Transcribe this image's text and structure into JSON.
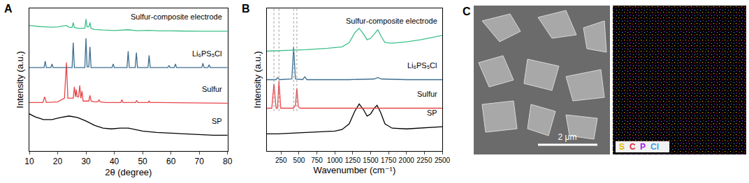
{
  "chart_data": [
    {
      "panel": "A",
      "type": "line",
      "xlabel": "2θ (degree)",
      "ylabel": "Intensity (a.u.)",
      "xlim": [
        10,
        80
      ],
      "xticks": [
        10,
        20,
        30,
        40,
        50,
        60,
        70,
        80
      ],
      "ylim": [
        0,
        1
      ],
      "yticks": [],
      "tick_labels": "x",
      "grid": false,
      "series": [
        {
          "name": "SP",
          "color": "#000000",
          "x": [
            10,
            12,
            15,
            18,
            21,
            24,
            27,
            30,
            33,
            36,
            39,
            42,
            45,
            50,
            55,
            60,
            65,
            70,
            75,
            80
          ],
          "values": [
            0.26,
            0.24,
            0.22,
            0.22,
            0.235,
            0.245,
            0.235,
            0.21,
            0.18,
            0.16,
            0.155,
            0.16,
            0.16,
            0.14,
            0.13,
            0.125,
            0.12,
            0.115,
            0.11,
            0.11
          ]
        },
        {
          "name": "Sulfur",
          "color": "#e8464a",
          "x": [
            10,
            14.8,
            15.4,
            16,
            20,
            22.4,
            23.1,
            23.6,
            24.5,
            25.5,
            25.9,
            26.3,
            26.6,
            26.9,
            27.4,
            27.8,
            28.2,
            28.6,
            29,
            31,
            31.4,
            31.8,
            33,
            34.2,
            34.6,
            35,
            37,
            42.3,
            42.7,
            43.1,
            47.5,
            47.9,
            48.3,
            52,
            52.3,
            52.7,
            56,
            62,
            70,
            80
          ],
          "values": [
            0.34,
            0.34,
            0.38,
            0.34,
            0.345,
            0.37,
            0.62,
            0.37,
            0.37,
            0.37,
            0.45,
            0.38,
            0.43,
            0.38,
            0.38,
            0.46,
            0.37,
            0.42,
            0.35,
            0.35,
            0.39,
            0.35,
            0.345,
            0.345,
            0.36,
            0.345,
            0.34,
            0.34,
            0.36,
            0.34,
            0.34,
            0.355,
            0.34,
            0.34,
            0.35,
            0.34,
            0.34,
            0.338,
            0.336,
            0.335
          ]
        },
        {
          "name": "Li₆PS₅Cl",
          "color": "#3d6e8f",
          "x": [
            10,
            15.2,
            15.6,
            16,
            17.6,
            18,
            18.4,
            25.1,
            25.5,
            25.9,
            29.6,
            30,
            30.4,
            31,
            31.4,
            31.8,
            39.2,
            39.6,
            40,
            44.5,
            44.9,
            45.3,
            47.4,
            47.8,
            48.2,
            51.9,
            52.3,
            52.7,
            58.9,
            59.3,
            59.7,
            61.2,
            61.6,
            62,
            70.9,
            71.3,
            71.7,
            73.1,
            73.5,
            73.9,
            80
          ],
          "values": [
            0.585,
            0.585,
            0.63,
            0.585,
            0.585,
            0.61,
            0.585,
            0.585,
            0.76,
            0.585,
            0.585,
            0.79,
            0.59,
            0.59,
            0.73,
            0.585,
            0.585,
            0.61,
            0.585,
            0.585,
            0.7,
            0.585,
            0.585,
            0.69,
            0.585,
            0.585,
            0.67,
            0.585,
            0.585,
            0.6,
            0.585,
            0.585,
            0.61,
            0.585,
            0.585,
            0.615,
            0.585,
            0.585,
            0.605,
            0.585,
            0.585
          ]
        },
        {
          "name": "Sulfur-composite electrode",
          "color": "#3dbf8a",
          "x": [
            10,
            12,
            14,
            16,
            18,
            20,
            22,
            23.1,
            24,
            25.1,
            25.5,
            25.9,
            27,
            29.6,
            30,
            30.4,
            31,
            31.4,
            31.8,
            33,
            36,
            40,
            44.9,
            48,
            52.3,
            56,
            60,
            65,
            70,
            75,
            80
          ],
          "values": [
            0.88,
            0.875,
            0.872,
            0.87,
            0.868,
            0.87,
            0.875,
            0.88,
            0.868,
            0.866,
            0.9,
            0.866,
            0.86,
            0.86,
            0.925,
            0.87,
            0.87,
            0.9,
            0.86,
            0.852,
            0.848,
            0.845,
            0.85,
            0.843,
            0.846,
            0.842,
            0.842,
            0.84,
            0.84,
            0.84,
            0.84
          ]
        }
      ]
    },
    {
      "panel": "B",
      "type": "line",
      "xlabel": "Wavenumber (cm⁻¹)",
      "ylabel": "Intensity (a.u.)",
      "xlim": [
        50,
        2500
      ],
      "xticks": [
        250,
        500,
        750,
        1000,
        1250,
        1500,
        1750,
        2000,
        2250,
        2500
      ],
      "ylim": [
        0,
        1
      ],
      "yticks": [],
      "tick_labels": "x",
      "grid": false,
      "guide_lines": [
        150,
        220,
        425,
        470
      ],
      "series": [
        {
          "name": "SP",
          "color": "#000000",
          "x": [
            50,
            200,
            400,
            600,
            800,
            1000,
            1100,
            1200,
            1280,
            1340,
            1400,
            1450,
            1500,
            1550,
            1590,
            1640,
            1700,
            1800,
            2000,
            2200,
            2500
          ],
          "values": [
            0.12,
            0.12,
            0.125,
            0.13,
            0.135,
            0.14,
            0.15,
            0.19,
            0.28,
            0.33,
            0.29,
            0.245,
            0.26,
            0.3,
            0.32,
            0.27,
            0.19,
            0.16,
            0.155,
            0.16,
            0.17
          ]
        },
        {
          "name": "Sulfur",
          "color": "#e8464a",
          "x": [
            50,
            120,
            150,
            180,
            200,
            220,
            245,
            300,
            420,
            450,
            470,
            490,
            520,
            700,
            1000,
            1500,
            2000,
            2500
          ],
          "values": [
            0.3,
            0.3,
            0.47,
            0.3,
            0.3,
            0.49,
            0.3,
            0.3,
            0.3,
            0.32,
            0.44,
            0.31,
            0.3,
            0.3,
            0.3,
            0.3,
            0.3,
            0.3
          ]
        },
        {
          "name": "Li₆PS₅Cl",
          "color": "#3d6e8f",
          "x": [
            50,
            180,
            200,
            230,
            400,
            425,
            450,
            550,
            580,
            610,
            800,
            1200,
            1550,
            1600,
            1650,
            2000,
            2500
          ],
          "values": [
            0.5,
            0.5,
            0.515,
            0.5,
            0.505,
            0.73,
            0.505,
            0.5,
            0.52,
            0.5,
            0.5,
            0.5,
            0.505,
            0.515,
            0.505,
            0.5,
            0.5
          ]
        },
        {
          "name": "Sulfur-composite electrode",
          "color": "#3dbf8a",
          "x": [
            50,
            300,
            600,
            900,
            1100,
            1200,
            1280,
            1340,
            1400,
            1450,
            1500,
            1550,
            1600,
            1650,
            1700,
            1800,
            2000,
            2200,
            2500
          ],
          "values": [
            0.7,
            0.705,
            0.71,
            0.72,
            0.73,
            0.76,
            0.83,
            0.86,
            0.82,
            0.78,
            0.79,
            0.82,
            0.85,
            0.8,
            0.76,
            0.755,
            0.765,
            0.78,
            0.81
          ]
        }
      ]
    }
  ],
  "image_panel": {
    "panel": "C",
    "scale_bar": "2 μm",
    "elements": [
      {
        "name": "S",
        "color": "#e6b800"
      },
      {
        "name": "C",
        "color": "#e8243c"
      },
      {
        "name": "P",
        "color": "#a020f0"
      },
      {
        "name": "Cl",
        "color": "#3fa0e0"
      }
    ]
  }
}
